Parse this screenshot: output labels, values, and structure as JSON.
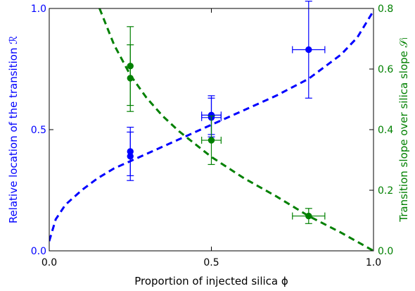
{
  "chart_data": {
    "type": "scatter",
    "xlabel": "Proportion of injected silica ϕ",
    "xlim": [
      0.0,
      1.0
    ],
    "x_ticks": [
      "0.0",
      "0.5",
      "1.0"
    ],
    "axes": {
      "left": {
        "label": "Relative location of the transition ℛ",
        "ylim": [
          0.0,
          1.0
        ],
        "ticks": [
          "0.0",
          "0.5",
          "1.0"
        ],
        "color": "#0000ff"
      },
      "right": {
        "label": "Transition slope over silica slope 𝒮ₗ",
        "ylim": [
          0.0,
          0.8
        ],
        "ticks": [
          "0.0",
          "0.2",
          "0.4",
          "0.6",
          "0.8"
        ],
        "color": "#008000"
      }
    },
    "grid": false,
    "series": [
      {
        "axis": "left",
        "color": "#0000ff",
        "points": [
          {
            "x": 0.25,
            "y": 0.41,
            "xerr": 0.0,
            "yerr": 0.1
          },
          {
            "x": 0.25,
            "y": 0.39,
            "xerr": 0.0,
            "yerr": 0.1
          },
          {
            "x": 0.5,
            "y": 0.56,
            "xerr": 0.03,
            "yerr": 0.08
          },
          {
            "x": 0.5,
            "y": 0.55,
            "xerr": 0.03,
            "yerr": 0.08
          },
          {
            "x": 0.8,
            "y": 0.83,
            "xerr": 0.05,
            "yerr": 0.2
          }
        ],
        "fit": {
          "style": "dashed",
          "x": [
            0.0,
            0.02,
            0.05,
            0.1,
            0.15,
            0.2,
            0.25,
            0.3,
            0.4,
            0.5,
            0.6,
            0.7,
            0.8,
            0.9,
            0.95,
            1.0
          ],
          "y": [
            0.04,
            0.13,
            0.19,
            0.25,
            0.3,
            0.34,
            0.37,
            0.4,
            0.46,
            0.52,
            0.58,
            0.64,
            0.71,
            0.81,
            0.88,
            0.99
          ]
        }
      },
      {
        "axis": "right",
        "color": "#008000",
        "points": [
          {
            "x": 0.25,
            "y": 0.61,
            "xerr": 0.0,
            "yerr": 0.13
          },
          {
            "x": 0.25,
            "y": 0.57,
            "xerr": 0.0,
            "yerr": 0.11
          },
          {
            "x": 0.5,
            "y": 0.365,
            "xerr": 0.03,
            "yerr": 0.08
          },
          {
            "x": 0.8,
            "y": 0.115,
            "xerr": 0.05,
            "yerr": 0.025
          }
        ],
        "fit": {
          "style": "dashed",
          "x": [
            0.155,
            0.2,
            0.25,
            0.3,
            0.35,
            0.4,
            0.5,
            0.6,
            0.7,
            0.8,
            0.9,
            1.0
          ],
          "y": [
            0.8,
            0.68,
            0.58,
            0.505,
            0.445,
            0.395,
            0.31,
            0.24,
            0.18,
            0.115,
            0.06,
            0.0
          ]
        }
      }
    ]
  }
}
